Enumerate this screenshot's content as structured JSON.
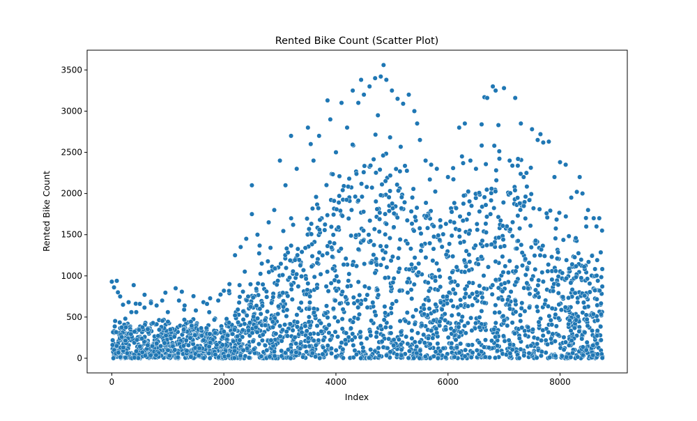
{
  "chart_data": {
    "type": "scatter",
    "title": "Rented Bike Count (Scatter Plot)",
    "xlabel": "Index",
    "ylabel": "Rented Bike Count",
    "xlim": [
      -440,
      9200
    ],
    "ylim": [
      -178,
      3740
    ],
    "xticks": [
      0,
      2000,
      4000,
      6000,
      8000
    ],
    "xtick_labels": [
      "0",
      "2000",
      "4000",
      "6000",
      "8000"
    ],
    "yticks": [
      0,
      500,
      1000,
      1500,
      2000,
      2500,
      3000,
      3500
    ],
    "ytick_labels": [
      "0",
      "500",
      "1000",
      "1500",
      "2000",
      "2500",
      "3000",
      "3500"
    ],
    "grid": false,
    "legend": "none",
    "marker_color": "#1f77b4",
    "marker_edge_color": "#ffffff",
    "n_points": 8760,
    "x": [
      0,
      40,
      90,
      110,
      150,
      200,
      300,
      350,
      500,
      700,
      800,
      900,
      1000,
      1200,
      1300,
      1500,
      1700,
      1900,
      2000,
      2100,
      2200,
      2300,
      2400,
      2500,
      2500,
      2600,
      2800,
      2900,
      3000,
      3100,
      3200,
      3300,
      3500,
      3550,
      3600,
      3700,
      3850,
      3900,
      4000,
      4100,
      4200,
      4300,
      4400,
      4450,
      4500,
      4600,
      4700,
      4750,
      4800,
      4850,
      4900,
      5000,
      5100,
      5200,
      5300,
      5400,
      5450,
      5500,
      5600,
      5700,
      5800,
      6000,
      6200,
      6250,
      6300,
      6400,
      6500,
      6600,
      6650,
      6700,
      6800,
      6850,
      6900,
      7000,
      7100,
      7200,
      7250,
      7300,
      7350,
      7400,
      7500,
      7600,
      7650,
      7700,
      7800,
      7900,
      8000,
      8100,
      8200,
      8300,
      8350,
      8400,
      8500,
      8600,
      8650,
      8700,
      8750
    ],
    "y": [
      930,
      860,
      940,
      800,
      750,
      650,
      680,
      560,
      660,
      670,
      640,
      700,
      560,
      700,
      640,
      580,
      660,
      700,
      820,
      900,
      1250,
      1350,
      1450,
      1750,
      2100,
      1500,
      1650,
      1800,
      2400,
      2100,
      2700,
      2300,
      2800,
      2600,
      2400,
      2700,
      3130,
      2900,
      2500,
      3100,
      2800,
      3250,
      3100,
      3380,
      3200,
      3300,
      3400,
      2950,
      3420,
      3560,
      3380,
      3250,
      3150,
      3090,
      3200,
      3000,
      2850,
      2650,
      2400,
      2350,
      2300,
      2200,
      2800,
      2450,
      2850,
      2400,
      2300,
      2840,
      3170,
      3160,
      3300,
      3250,
      2830,
      3280,
      2400,
      3160,
      2420,
      2850,
      2200,
      2250,
      2780,
      2650,
      2720,
      2620,
      2630,
      2200,
      2380,
      2350,
      1950,
      2020,
      2200,
      2000,
      1800,
      1700,
      1600,
      1700,
      1550
    ]
  }
}
